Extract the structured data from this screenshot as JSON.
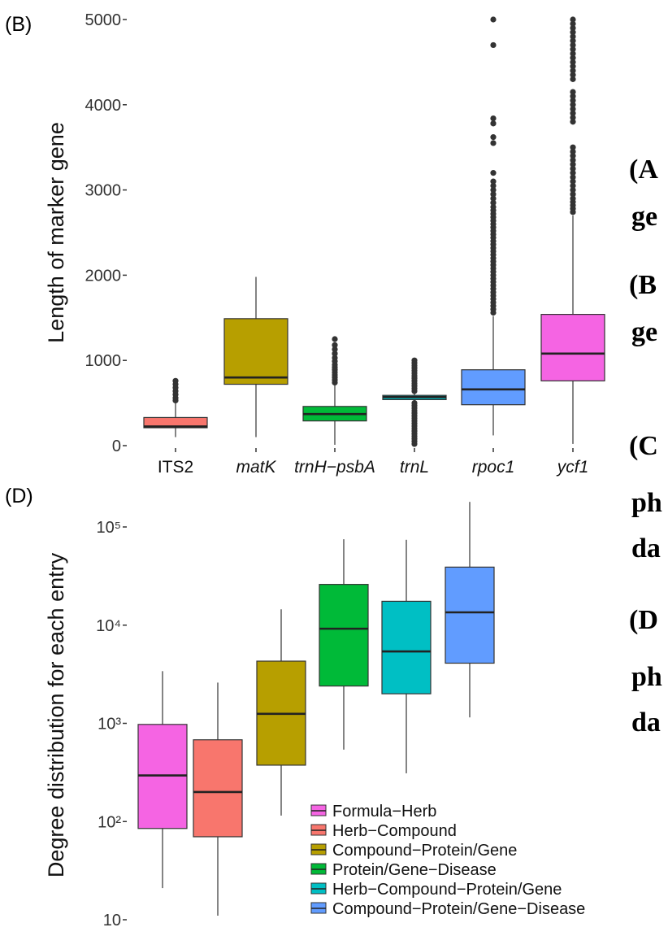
{
  "panels": {
    "b": {
      "letter": "(B)"
    },
    "d": {
      "letter": "(D)"
    }
  },
  "side_notes": [
    "(A",
    "ge",
    "(B",
    "ge",
    "(C",
    "ph",
    "da",
    "(D",
    "ph",
    "da"
  ],
  "chart_data": [
    {
      "type": "box",
      "ylabel": "Length of marker gene",
      "ylim": [
        0,
        5000
      ],
      "yticks": [
        0,
        1000,
        2000,
        3000,
        4000,
        5000
      ],
      "ytick_labels": [
        "0",
        "1000",
        "2000",
        "3000",
        "4000",
        "5000"
      ],
      "grid": false,
      "categories": [
        "ITS2",
        "matK",
        "trnH−psbA",
        "trnL",
        "rpoc1",
        "ycf1"
      ],
      "italic_categories": [
        false,
        true,
        true,
        true,
        true,
        true
      ],
      "colors": [
        "#F8766D",
        "#B79F00",
        "#00BA38",
        "#00BFC4",
        "#619CFF",
        "#F564E3"
      ],
      "boxes": [
        {
          "whisker_low": 100,
          "q1": 210,
          "median": 225,
          "q3": 330,
          "whisker_high": 500,
          "outliers": [
            530,
            560,
            600,
            640,
            680,
            720,
            760
          ]
        },
        {
          "whisker_low": 100,
          "q1": 720,
          "median": 800,
          "q3": 1490,
          "whisker_high": 1980,
          "outliers": []
        },
        {
          "whisker_low": 10,
          "q1": 290,
          "median": 370,
          "q3": 460,
          "whisker_high": 720,
          "outliers": [
            740,
            770,
            800,
            830,
            860,
            890,
            920,
            950,
            990,
            1030,
            1080,
            1130,
            1180,
            1250
          ]
        },
        {
          "whisker_low": 520,
          "q1": 540,
          "median": 570,
          "q3": 590,
          "whisker_high": 620,
          "outliers": [
            20,
            50,
            80,
            110,
            140,
            170,
            200,
            230,
            260,
            290,
            320,
            350,
            380,
            410,
            440,
            470,
            500,
            640,
            670,
            700,
            730,
            760,
            790,
            820,
            850,
            880,
            910,
            940,
            970,
            1000
          ]
        },
        {
          "whisker_low": 120,
          "q1": 480,
          "median": 660,
          "q3": 890,
          "whisker_high": 1520,
          "outliers": [
            1560,
            1600,
            1640,
            1680,
            1720,
            1760,
            1800,
            1840,
            1880,
            1920,
            1960,
            2000,
            2040,
            2080,
            2120,
            2160,
            2200,
            2240,
            2280,
            2320,
            2360,
            2400,
            2440,
            2480,
            2520,
            2560,
            2600,
            2640,
            2680,
            2720,
            2760,
            2800,
            2850,
            2900,
            2950,
            3000,
            3050,
            3100,
            3200,
            3550,
            3620,
            3780,
            3840,
            4700,
            5000
          ]
        },
        {
          "whisker_low": 20,
          "q1": 760,
          "median": 1080,
          "q3": 1540,
          "whisker_high": 2700,
          "outliers": [
            2740,
            2780,
            2820,
            2860,
            2900,
            2950,
            3000,
            3050,
            3100,
            3150,
            3200,
            3250,
            3300,
            3350,
            3400,
            3450,
            3500,
            3800,
            3850,
            3900,
            3950,
            4000,
            4050,
            4100,
            4150,
            4300,
            4350,
            4400,
            4450,
            4500,
            4550,
            4600,
            4650,
            4700,
            4750,
            4800,
            4850,
            4900,
            4950,
            5000
          ]
        }
      ]
    },
    {
      "type": "box",
      "ylabel": "Degree distribution for each entry",
      "scale": "log",
      "ylim": [
        10,
        100000
      ],
      "yticks": [
        10,
        100,
        1000,
        10000,
        100000
      ],
      "ytick_labels": [
        "10",
        "10²",
        "10³",
        "10⁴",
        "10⁵"
      ],
      "grid": false,
      "legend_position": "bottom-right",
      "series": [
        {
          "name": "Formula−Herb",
          "color": "#F564E3",
          "whisker_low": 21,
          "q1": 85,
          "median": 295,
          "q3": 975,
          "whisker_high": 3400
        },
        {
          "name": "Herb−Compound",
          "color": "#F8766D",
          "whisker_low": 11,
          "q1": 70,
          "median": 200,
          "q3": 680,
          "whisker_high": 2600
        },
        {
          "name": "Compound−Protein/Gene",
          "color": "#B79F00",
          "whisker_low": 115,
          "q1": 375,
          "median": 1250,
          "q3": 4300,
          "whisker_high": 14500
        },
        {
          "name": "Protein/Gene−Disease",
          "color": "#00BA38",
          "whisker_low": 540,
          "q1": 2400,
          "median": 9200,
          "q3": 26000,
          "whisker_high": 75000
        },
        {
          "name": "Herb−Compound−Protein/Gene",
          "color": "#00BFC4",
          "whisker_low": 310,
          "q1": 2000,
          "median": 5400,
          "q3": 17500,
          "whisker_high": 74000
        },
        {
          "name": "Compound−Protein/Gene−Disease",
          "color": "#619CFF",
          "whisker_low": 1150,
          "q1": 4100,
          "median": 13500,
          "q3": 39000,
          "whisker_high": 180000
        }
      ]
    }
  ]
}
